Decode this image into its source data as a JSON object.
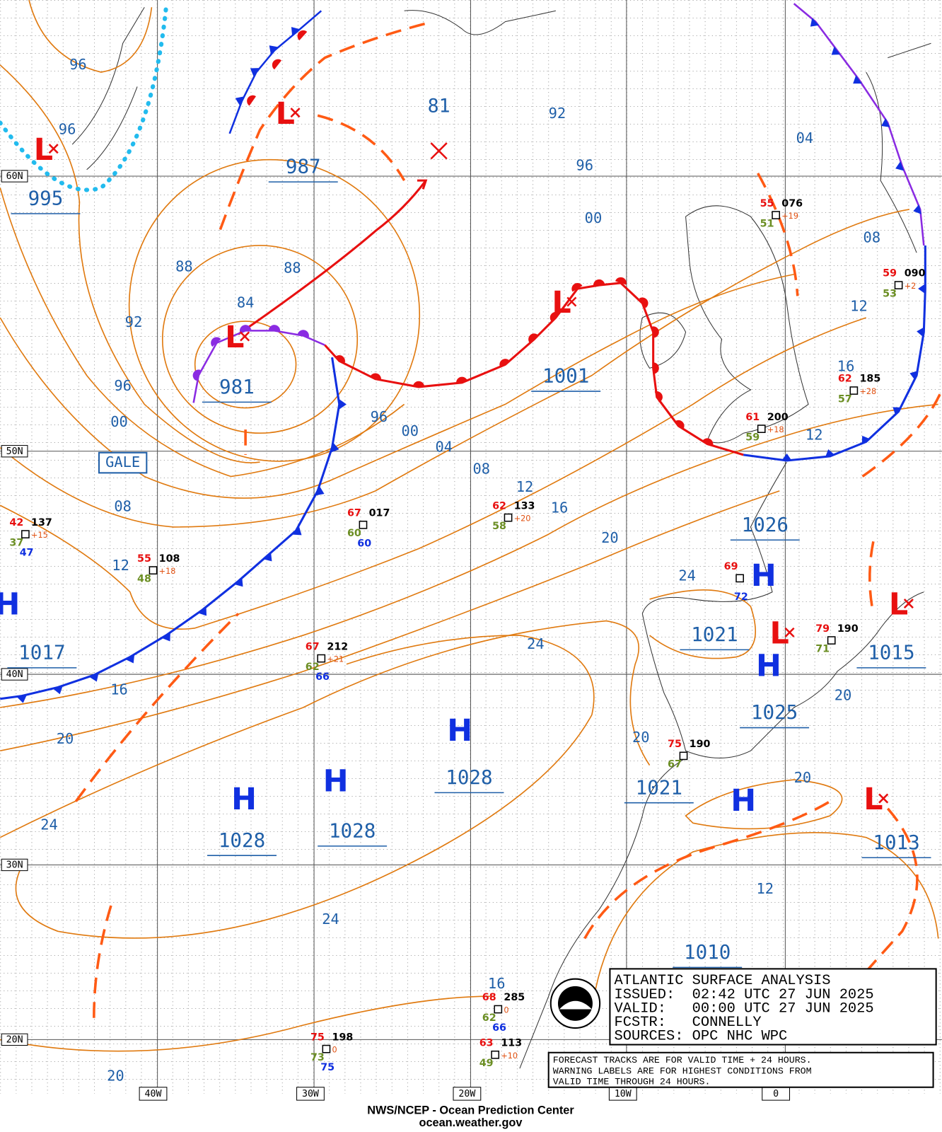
{
  "map": {
    "lat_labels": [
      "60N",
      "50N",
      "40N",
      "30N",
      "20N"
    ],
    "lon_labels": [
      "40W",
      "30W",
      "20W",
      "10W",
      "0"
    ],
    "isobar_labels": [
      "96",
      "96",
      "92",
      "96",
      "00",
      "04",
      "08",
      "12",
      "16",
      "88",
      "88",
      "84",
      "92",
      "96",
      "00",
      "96",
      "00",
      "04",
      "08",
      "12",
      "16",
      "20",
      "24",
      "08",
      "12",
      "16",
      "20",
      "24",
      "24",
      "20",
      "20",
      "12",
      "12",
      "24",
      "16",
      "20",
      "20"
    ],
    "centers": [
      "L",
      "L",
      "L",
      "L",
      "H",
      "H",
      "H",
      "H",
      "H",
      "L",
      "H",
      "H",
      "L",
      "L"
    ],
    "pressure_labels": [
      "987",
      "981",
      "995",
      "1001",
      "1017",
      "1028",
      "1028",
      "1028",
      "1026",
      "1021",
      "1025",
      "1021",
      "1015",
      "1013",
      "1010"
    ],
    "gale_label": "GALE",
    "track_label": "81",
    "stations": [
      {
        "temp": "42",
        "pressure": "137",
        "dewpoint": "37",
        "tendency": "+15",
        "sst": "47"
      },
      {
        "temp": "55",
        "pressure": "108",
        "dewpoint": "48",
        "tendency": "+18"
      },
      {
        "temp": "67",
        "pressure": "017",
        "dewpoint": "60",
        "sst": "60"
      },
      {
        "temp": "62",
        "pressure": "133",
        "dewpoint": "58",
        "tendency": "+20"
      },
      {
        "temp": "67",
        "pressure": "212",
        "dewpoint": "62",
        "tendency": "+21",
        "sst": "66"
      },
      {
        "temp": "55",
        "pressure": "076",
        "dewpoint": "51",
        "tendency": "+19"
      },
      {
        "temp": "59",
        "pressure": "090",
        "dewpoint": "53",
        "tendency": "+2"
      },
      {
        "temp": "62",
        "pressure": "185",
        "dewpoint": "57",
        "tendency": "+28"
      },
      {
        "temp": "61",
        "pressure": "200",
        "dewpoint": "59",
        "tendency": "+18"
      },
      {
        "temp": "69",
        "sst": "72"
      },
      {
        "temp": "79",
        "pressure": "190",
        "dewpoint": "71"
      },
      {
        "temp": "75",
        "pressure": "190",
        "dewpoint": "67"
      },
      {
        "temp": "75",
        "pressure": "198",
        "dewpoint": "73",
        "tendency": "0",
        "sst": "75"
      },
      {
        "temp": "68",
        "pressure": "285",
        "dewpoint": "62",
        "tendency": "0",
        "sst": "66"
      },
      {
        "temp": "63",
        "pressure": "113",
        "dewpoint": "49",
        "tendency": "+10"
      }
    ]
  },
  "info_box": {
    "title": "ATLANTIC SURFACE ANALYSIS",
    "lines": [
      "ISSUED:  02:42 UTC 27 JUN 2025",
      "VALID:   00:00 UTC 27 JUN 2025",
      "FCSTR:   CONNELLY",
      "SOURCES: OPC NHC WPC"
    ]
  },
  "notes": [
    "FORECAST TRACKS ARE FOR VALID TIME + 24 HOURS.",
    "WARNING LABELS ARE FOR HIGHEST CONDITIONS FROM",
    "VALID TIME THROUGH 24 HOURS."
  ],
  "footer": {
    "agency": "NWS/NCEP - Ocean Prediction Center",
    "url": "ocean.weather.gov"
  }
}
